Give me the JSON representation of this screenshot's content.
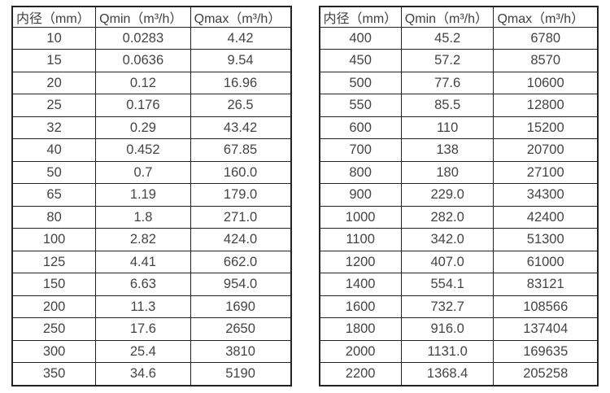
{
  "page": {
    "background": "#ffffff",
    "border_color": "#232323",
    "text_color": "#3f3f3f"
  },
  "tables": [
    {
      "name": "flow-range-small-diameters",
      "headers": [
        "内径（mm）",
        "Qmin（m³/h）",
        "Qmax（m³/h）"
      ],
      "rows": [
        [
          "10",
          "0.0283",
          "4.42"
        ],
        [
          "15",
          "0.0636",
          "9.54"
        ],
        [
          "20",
          "0.12",
          "16.96"
        ],
        [
          "25",
          "0.176",
          "26.5"
        ],
        [
          "32",
          "0.29",
          "43.42"
        ],
        [
          "40",
          "0.452",
          "67.85"
        ],
        [
          "50",
          "0.7",
          "160.0"
        ],
        [
          "65",
          "1.19",
          "179.0"
        ],
        [
          "80",
          "1.8",
          "271.0"
        ],
        [
          "100",
          "2.82",
          "424.0"
        ],
        [
          "125",
          "4.41",
          "662.0"
        ],
        [
          "150",
          "6.63",
          "954.0"
        ],
        [
          "200",
          "11.3",
          "1690"
        ],
        [
          "250",
          "17.6",
          "2650"
        ],
        [
          "300",
          "25.4",
          "3810"
        ],
        [
          "350",
          "34.6",
          "5190"
        ]
      ]
    },
    {
      "name": "flow-range-large-diameters",
      "headers": [
        "内径（mm）",
        "Qmin（m³/h）",
        "Qmax（m³/h）"
      ],
      "rows": [
        [
          "400",
          "45.2",
          "6780"
        ],
        [
          "450",
          "57.2",
          "8570"
        ],
        [
          "500",
          "77.6",
          "10600"
        ],
        [
          "550",
          "85.5",
          "12800"
        ],
        [
          "600",
          "110",
          "15200"
        ],
        [
          "700",
          "138",
          "20700"
        ],
        [
          "800",
          "180",
          "27100"
        ],
        [
          "900",
          "229.0",
          "34300"
        ],
        [
          "1000",
          "282.0",
          "42400"
        ],
        [
          "1100",
          "342.0",
          "51300"
        ],
        [
          "1200",
          "407.0",
          "61000"
        ],
        [
          "1400",
          "554.1",
          "83121"
        ],
        [
          "1600",
          "732.7",
          "108566"
        ],
        [
          "1800",
          "916.0",
          "137404"
        ],
        [
          "2000",
          "1131.0",
          "169635"
        ],
        [
          "2200",
          "1368.4",
          "205258"
        ]
      ]
    }
  ]
}
